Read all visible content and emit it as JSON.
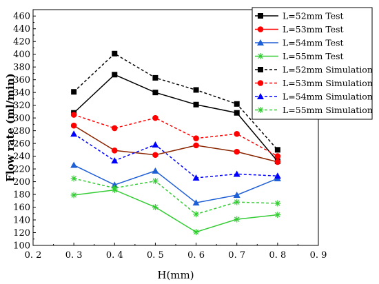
{
  "chart_data": {
    "type": "line",
    "title": "",
    "xlabel": "H(mm)",
    "ylabel": "Flow rate (ml/min)",
    "xlim": [
      0.2,
      0.9
    ],
    "ylim": [
      100,
      470
    ],
    "x_ticks": [
      "0. 2",
      "0. 3",
      "0. 4",
      "0. 5",
      "0. 6",
      "0. 7",
      "0. 8",
      "0. 9"
    ],
    "y_ticks": [
      "100",
      "120",
      "140",
      "160",
      "180",
      "200",
      "220",
      "240",
      "260",
      "280",
      "300",
      "320",
      "340",
      "360",
      "380",
      "400",
      "420",
      "440",
      "460"
    ],
    "x": [
      0.3,
      0.4,
      0.5,
      0.6,
      0.7,
      0.8
    ],
    "legend_position": "top-right",
    "series": [
      {
        "name": "L=52mm Test",
        "values": [
          308,
          368,
          340,
          321,
          308,
          232
        ],
        "color": "#000000",
        "style": "solid",
        "marker": "square"
      },
      {
        "name": "L=53mm Test",
        "values": [
          288,
          249,
          242,
          257,
          247,
          231
        ],
        "color": "#ff0000",
        "line_color": "#8b2500",
        "style": "solid",
        "marker": "circle"
      },
      {
        "name": "L=54mm Test",
        "values": [
          226,
          195,
          217,
          167,
          179,
          205
        ],
        "color": "#1f5fd6",
        "style": "solid",
        "marker": "triangle"
      },
      {
        "name": "L=55mm Test",
        "values": [
          179,
          187,
          160,
          121,
          141,
          148
        ],
        "color": "#33cc33",
        "style": "solid",
        "marker": "star"
      },
      {
        "name": "L=52mm Simulation",
        "values": [
          341,
          401,
          363,
          344,
          322,
          250
        ],
        "color": "#000000",
        "style": "dashed",
        "marker": "square"
      },
      {
        "name": "L=53mm Simulation",
        "values": [
          305,
          284,
          300,
          268,
          275,
          240
        ],
        "color": "#ff0000",
        "style": "dashed",
        "marker": "circle"
      },
      {
        "name": "L=54mm Simulation",
        "values": [
          275,
          233,
          258,
          206,
          212,
          209
        ],
        "color": "#0000ff",
        "style": "dashed",
        "marker": "triangle"
      },
      {
        "name": "L=55mm Simulation",
        "values": [
          205,
          190,
          201,
          149,
          168,
          166
        ],
        "color": "#33cc33",
        "style": "dashed",
        "marker": "star"
      }
    ]
  }
}
